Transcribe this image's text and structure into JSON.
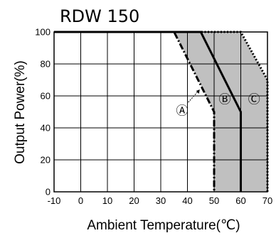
{
  "chart_data": {
    "type": "line",
    "title": "RDW 150",
    "xlabel": "Ambient Temperature(℃)",
    "ylabel": "Output Power(%)",
    "xlim": [
      -10,
      70
    ],
    "ylim": [
      0,
      100
    ],
    "x_ticks": [
      -10,
      0,
      10,
      20,
      30,
      40,
      50,
      60,
      70
    ],
    "y_ticks": [
      0,
      20,
      40,
      60,
      80,
      100
    ],
    "x_tick_labels": [
      "-10",
      "0",
      "10",
      "20",
      "30",
      "40",
      "50",
      "60",
      "70"
    ],
    "y_tick_labels": [
      "0",
      "20",
      "40",
      "60",
      "80",
      "100"
    ],
    "grid": true,
    "series": [
      {
        "name": "Ⓐ",
        "style": "dash-dot",
        "x": [
          -10,
          35,
          50,
          50
        ],
        "y": [
          100,
          100,
          50,
          0
        ]
      },
      {
        "name": "Ⓑ",
        "style": "solid",
        "x": [
          -10,
          45,
          60,
          60
        ],
        "y": [
          100,
          100,
          50,
          0
        ]
      },
      {
        "name": "Ⓒ",
        "style": "dotted",
        "x": [
          -10,
          60,
          70,
          70
        ],
        "y": [
          100,
          100,
          70,
          0
        ]
      }
    ],
    "shaded_region_color": "#c0c0c0"
  }
}
